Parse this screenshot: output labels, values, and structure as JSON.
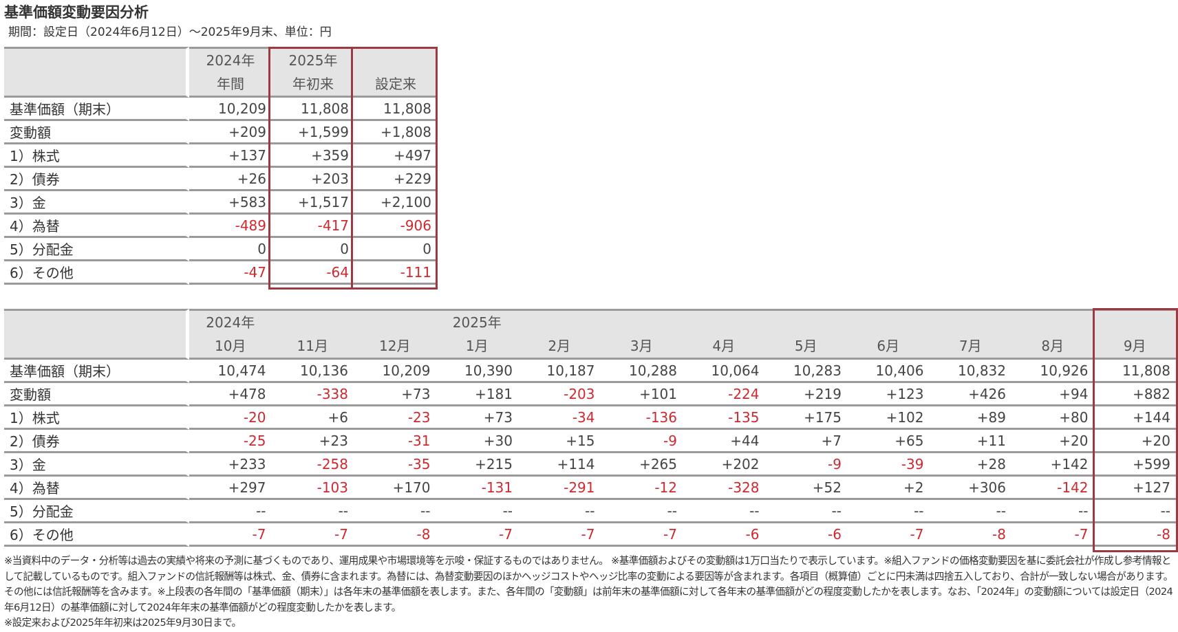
{
  "title": "基準価額変動要因分析",
  "subtitle": "期間：設定日（2024年6月12日）～2025年9月末、単位：円",
  "colors": {
    "negative": "#d0282e",
    "highlight_border": "#9b3a41",
    "header_bg": "#e4e4e4"
  },
  "summary_table": {
    "columns": [
      {
        "line1": "2024年",
        "line2": "年間"
      },
      {
        "line1": "2025年",
        "line2": "年初来"
      },
      {
        "line1": "",
        "line2": "設定来"
      }
    ],
    "rows": [
      {
        "label": "基準価額（期末）",
        "values": [
          "10,209",
          "11,808",
          "11,808"
        ]
      },
      {
        "label": "変動額",
        "values": [
          "+209",
          "+1,599",
          "+1,808"
        ]
      },
      {
        "label": "1）株式",
        "values": [
          "+137",
          "+359",
          "+497"
        ]
      },
      {
        "label": "2）債券",
        "values": [
          "+26",
          "+203",
          "+229"
        ]
      },
      {
        "label": "3）金",
        "values": [
          "+583",
          "+1,517",
          "+2,100"
        ]
      },
      {
        "label": "4）為替",
        "values": [
          "-489",
          "-417",
          "-906"
        ]
      },
      {
        "label": "5）分配金",
        "values": [
          "0",
          "0",
          "0"
        ]
      },
      {
        "label": "6）その他",
        "values": [
          "-47",
          "-64",
          "-111"
        ]
      }
    ]
  },
  "monthly_table": {
    "columns": [
      {
        "line1": "2024年",
        "line2": "10月"
      },
      {
        "line1": "",
        "line2": "11月"
      },
      {
        "line1": "",
        "line2": "12月"
      },
      {
        "line1": "2025年",
        "line2": "1月"
      },
      {
        "line1": "",
        "line2": "2月"
      },
      {
        "line1": "",
        "line2": "3月"
      },
      {
        "line1": "",
        "line2": "4月"
      },
      {
        "line1": "",
        "line2": "5月"
      },
      {
        "line1": "",
        "line2": "6月"
      },
      {
        "line1": "",
        "line2": "7月"
      },
      {
        "line1": "",
        "line2": "8月"
      },
      {
        "line1": "",
        "line2": "9月"
      }
    ],
    "rows": [
      {
        "label": "基準価額（期末）",
        "values": [
          "10,474",
          "10,136",
          "10,209",
          "10,390",
          "10,187",
          "10,288",
          "10,064",
          "10,283",
          "10,406",
          "10,832",
          "10,926",
          "11,808"
        ]
      },
      {
        "label": "変動額",
        "values": [
          "+478",
          "-338",
          "+73",
          "+181",
          "-203",
          "+101",
          "-224",
          "+219",
          "+123",
          "+426",
          "+94",
          "+882"
        ]
      },
      {
        "label": "1）株式",
        "values": [
          "-20",
          "+6",
          "-23",
          "+73",
          "-34",
          "-136",
          "-135",
          "+175",
          "+102",
          "+89",
          "+80",
          "+144"
        ]
      },
      {
        "label": "2）債券",
        "values": [
          "-25",
          "+23",
          "-31",
          "+30",
          "+15",
          "-9",
          "+44",
          "+7",
          "+65",
          "+11",
          "+20",
          "+20"
        ]
      },
      {
        "label": "3）金",
        "values": [
          "+233",
          "-258",
          "-35",
          "+215",
          "+114",
          "+265",
          "+202",
          "-9",
          "-39",
          "+28",
          "+142",
          "+599"
        ]
      },
      {
        "label": "4）為替",
        "values": [
          "+297",
          "-103",
          "+170",
          "-131",
          "-291",
          "-12",
          "-328",
          "+52",
          "+2",
          "+306",
          "-142",
          "+127"
        ]
      },
      {
        "label": "5）分配金",
        "values": [
          "--",
          "--",
          "--",
          "--",
          "--",
          "--",
          "--",
          "--",
          "--",
          "--",
          "--",
          "--"
        ]
      },
      {
        "label": "6）その他",
        "values": [
          "-7",
          "-7",
          "-8",
          "-7",
          "-7",
          "-7",
          "-6",
          "-6",
          "-7",
          "-8",
          "-7",
          "-8"
        ]
      }
    ]
  },
  "notes": [
    "※当資料中のデータ・分析等は過去の実績や将来の予測に基づくものであり、運用成果や市場環境等を示唆・保証するものではありません。 ※基準価額およびその変動額は1万口当たりで表示しています。※組入ファンドの価格変動要因を基に委託会社が作成し参考情報として記載しているものです。組入ファンドの信託報酬等は株式、金、債券に含まれます。為替には、為替変動要因のほかヘッジコストやヘッジ比率の変動による要因等が含まれます。各項目（概算値）ごとに円未満は四捨五入しており、合計が一致しない場合があります。その他には信託報酬等を含みます。※上段表の各年間の「基準価額（期末）」は各年末の基準価額を表します。また、各年間の「変動額」は前年末の基準価額に対して各年末の基準価額がどの程度変動したかを表します。なお、「2024年」の変動額については設定日（2024年6月12日）の基準価額に対して2024年年末の基準価額がどの程度変動したかを表します。",
    "※設定来および2025年年初来は2025年9月30日まで。"
  ]
}
